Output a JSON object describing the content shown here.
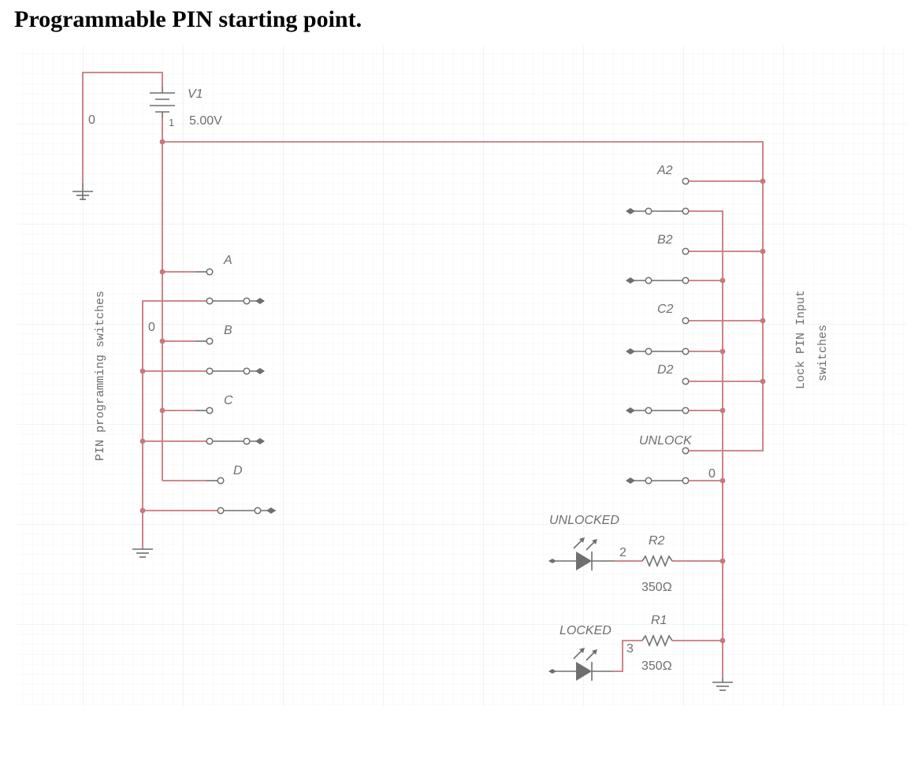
{
  "page": {
    "title": "Programmable PIN starting point."
  },
  "source": {
    "name": "V1",
    "voltage": "5.00V",
    "node_neg": "0",
    "node_pos": "1"
  },
  "left_panel": {
    "caption": "PIN programming switches",
    "node": "0",
    "switches": [
      "A",
      "B",
      "C",
      "D"
    ]
  },
  "right_panel": {
    "caption_line1": "Lock PIN Input",
    "caption_line2": "switches",
    "switches": [
      "A2",
      "B2",
      "C2",
      "D2",
      "UNLOCK"
    ],
    "node": "0"
  },
  "leds": {
    "unlocked": {
      "label": "UNLOCKED",
      "node": "2"
    },
    "locked": {
      "label": "LOCKED",
      "node": "3"
    }
  },
  "resistors": {
    "r2": {
      "name": "R2",
      "value": "350Ω"
    },
    "r1": {
      "name": "R1",
      "value": "350Ω"
    }
  },
  "colors": {
    "wire": "#c9777c",
    "component": "#6f6f6f",
    "grid": "#ececec"
  }
}
